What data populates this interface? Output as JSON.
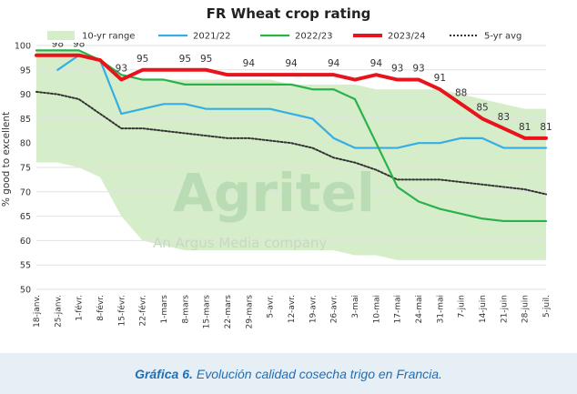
{
  "chart_data": {
    "type": "line",
    "title": "FR Wheat crop rating",
    "ylabel": "% good to excellent",
    "ylim": [
      50,
      100
    ],
    "yticks": [
      50,
      55,
      60,
      65,
      70,
      75,
      80,
      85,
      90,
      95,
      100
    ],
    "categories": [
      "18-janv.",
      "25-janv.",
      "1-févr.",
      "8-févr.",
      "15-févr.",
      "22-févr.",
      "1-mars",
      "8-mars",
      "15-mars",
      "22-mars",
      "29-mars",
      "5-avr.",
      "12-avr.",
      "19-avr.",
      "26-avr.",
      "3-mai",
      "10-mai",
      "17-mai",
      "24-mai",
      "31-mai",
      "7-juin",
      "14-juin",
      "21-juin",
      "28-juin",
      "5-juil."
    ],
    "grid": true,
    "legend_position": "top",
    "range_band": {
      "name": "10-yr range",
      "color": "#d5edc8",
      "upper": [
        99,
        99,
        99,
        97,
        94,
        93,
        93,
        93,
        93,
        93,
        93,
        93,
        92,
        92,
        92,
        92,
        91,
        91,
        91,
        91,
        90,
        89,
        88,
        87,
        87
      ],
      "lower": [
        76,
        76,
        75,
        73,
        65,
        60,
        59,
        58,
        58,
        58,
        58,
        58,
        58,
        58,
        58,
        57,
        57,
        56,
        56,
        56,
        56,
        56,
        56,
        56,
        56
      ]
    },
    "series": [
      {
        "name": "2021/22",
        "color": "#35aee6",
        "values": [
          null,
          95,
          98,
          97,
          86,
          87,
          88,
          88,
          87,
          87,
          87,
          87,
          86,
          85,
          81,
          79,
          79,
          79,
          80,
          80,
          81,
          81,
          79,
          79,
          79
        ]
      },
      {
        "name": "2022/23",
        "color": "#2ab24a",
        "values": [
          99,
          99,
          99,
          97,
          94,
          93,
          93,
          92,
          92,
          92,
          92,
          92,
          92,
          91,
          91,
          89,
          80,
          71,
          68,
          66.5,
          65.5,
          64.5,
          64,
          64,
          64
        ]
      },
      {
        "name": "2023/24",
        "color": "#e8141c",
        "values": [
          98,
          98,
          98,
          97,
          93,
          95,
          95,
          95,
          95,
          94,
          94,
          94,
          94,
          94,
          94,
          93,
          94,
          93,
          93,
          91,
          88,
          85,
          83,
          81,
          81
        ],
        "labels": [
          "",
          "98",
          "98",
          "",
          "93",
          "95",
          "",
          "95",
          "95",
          "",
          "94",
          "",
          "94",
          "",
          "94",
          "",
          "94",
          "93",
          "93",
          "91",
          "88",
          "85",
          "83",
          "81",
          "81"
        ]
      },
      {
        "name": "5-yr avg",
        "color": "#333333",
        "values": [
          90.5,
          90,
          89,
          86,
          83,
          83,
          82.5,
          82,
          81.5,
          81,
          81,
          80.5,
          80,
          79,
          77,
          76,
          74.5,
          72.5,
          72.5,
          72.5,
          72,
          71.5,
          71,
          70.5,
          69.5
        ]
      }
    ],
    "legend": [
      "10-yr range",
      "2021/22",
      "2022/23",
      "2023/24",
      "5-yr avg"
    ],
    "watermark": {
      "brand": "Agritel",
      "tagline": "An Argus Media company"
    }
  },
  "caption": {
    "label": "Gráfica 6.",
    "text": "Evolución calidad cosecha trigo en Francia."
  }
}
